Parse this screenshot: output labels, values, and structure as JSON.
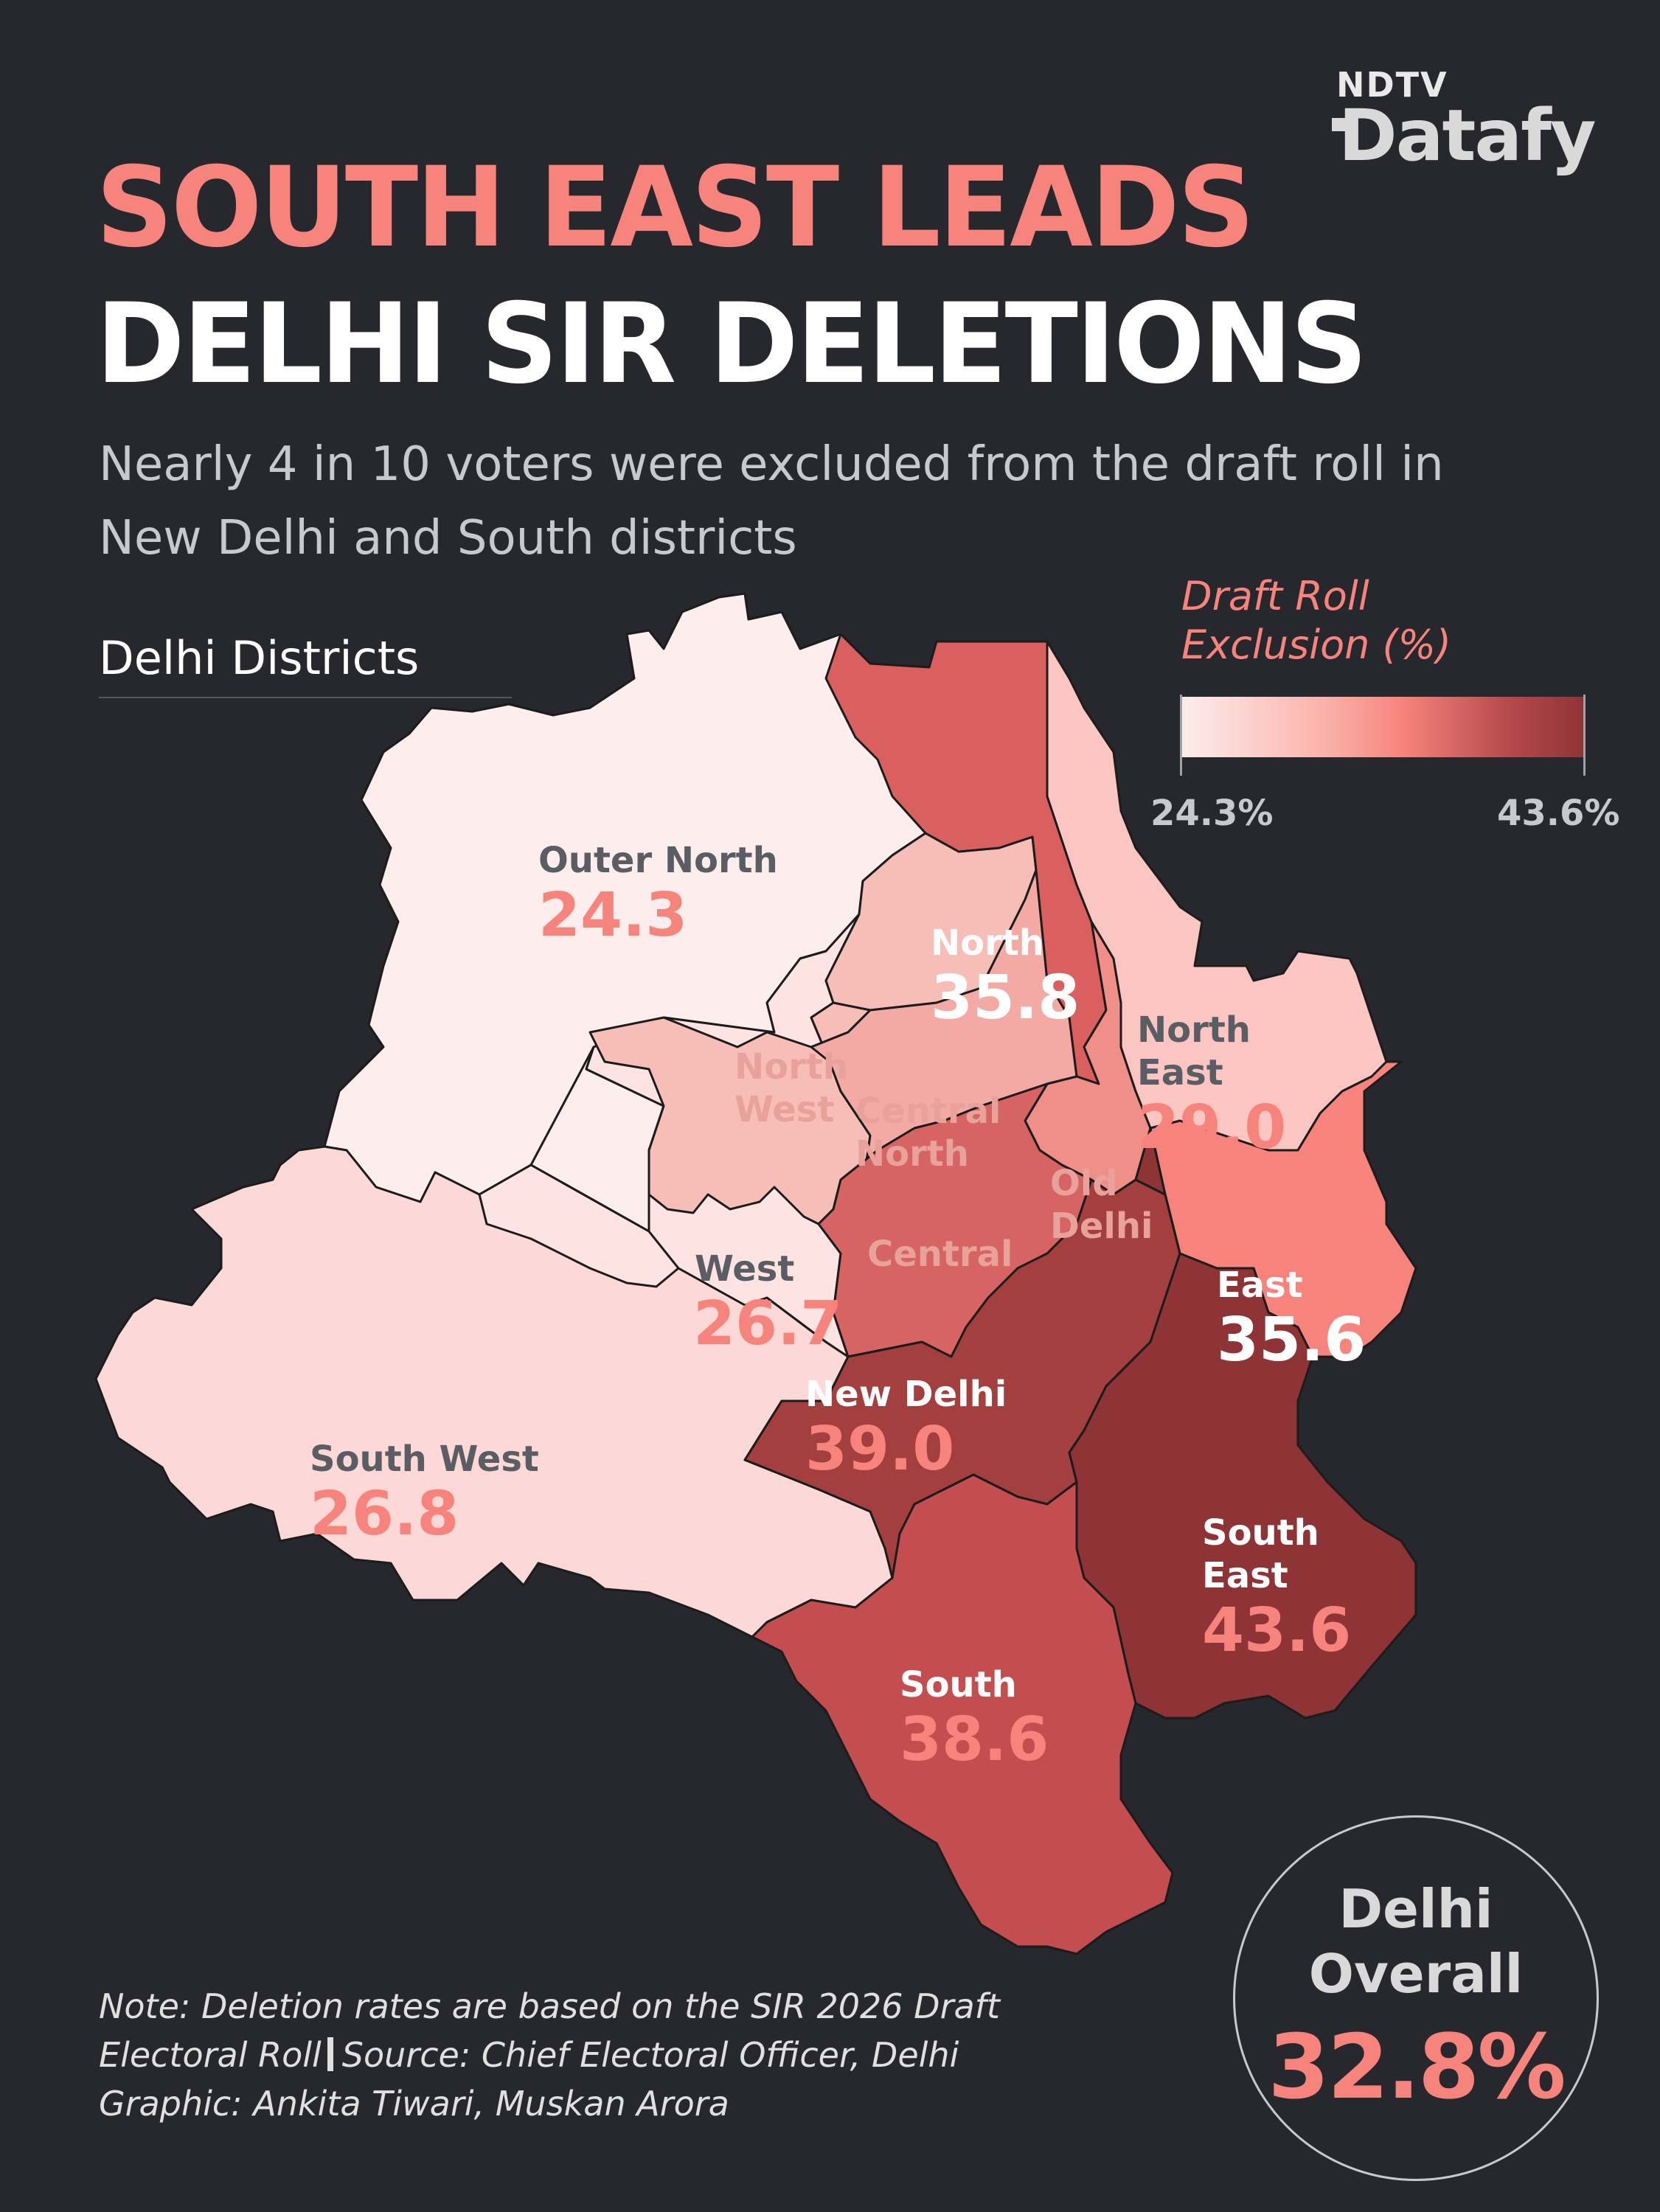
{
  "brand": {
    "top": "NDTV",
    "main": "Datafy"
  },
  "title_line1": "SOUTH EAST LEADS",
  "title_line2": "DELHI SIR DELETIONS",
  "subtitle": "Nearly 4 in 10 voters were excluded from the draft roll in New Delhi and South districts",
  "map_label": "Delhi Districts",
  "legend": {
    "title": "Draft Roll Exclusion (%)",
    "min_label": "24.3%",
    "max_label": "43.6%",
    "min": 24.3,
    "max": 43.6,
    "colors": [
      "#fdeeed",
      "#fbb3ac",
      "#f7847c",
      "#b84b4d",
      "#8e3336"
    ]
  },
  "districts": [
    {
      "name": "Outer North",
      "value": 24.3,
      "value_label": "24.3",
      "fill": "#fdeeed"
    },
    {
      "name": "North",
      "value": 35.8,
      "value_label": "35.8",
      "fill": "#d9605e"
    },
    {
      "name": "North East",
      "value": 29.0,
      "value_label": "29.0",
      "fill": "#fbc6c1"
    },
    {
      "name": "North West",
      "value": null,
      "value_label": "",
      "fill": "#f7bdb7"
    },
    {
      "name": "Central North",
      "value": null,
      "value_label": "",
      "fill": "#f3aaa4"
    },
    {
      "name": "Old Delhi",
      "value": null,
      "value_label": "",
      "fill": "#f08e88"
    },
    {
      "name": "West",
      "value": 26.7,
      "value_label": "26.7",
      "fill": "#fde4e2"
    },
    {
      "name": "Central",
      "value": null,
      "value_label": "",
      "fill": "#d56462"
    },
    {
      "name": "East",
      "value": 35.6,
      "value_label": "35.6",
      "fill": "#f7847c"
    },
    {
      "name": "New Delhi",
      "value": 39.0,
      "value_label": "39.0",
      "fill": "#a3403f"
    },
    {
      "name": "South West",
      "value": 26.8,
      "value_label": "26.8",
      "fill": "#fcd9d6"
    },
    {
      "name": "South East",
      "value": 43.6,
      "value_label": "43.6",
      "fill": "#8e3336"
    },
    {
      "name": "South",
      "value": 38.6,
      "value_label": "38.6",
      "fill": "#c44e4f"
    }
  ],
  "overall": {
    "label": "Delhi Overall",
    "value": "32.8%"
  },
  "note": {
    "line1": "Note: Deletion rates are based on the SIR 2026 Draft Electoral Roll",
    "source": "Source: Chief Electoral Officer, Delhi",
    "credit": "Graphic: Ankita Tiwari, Muskan Arora"
  }
}
